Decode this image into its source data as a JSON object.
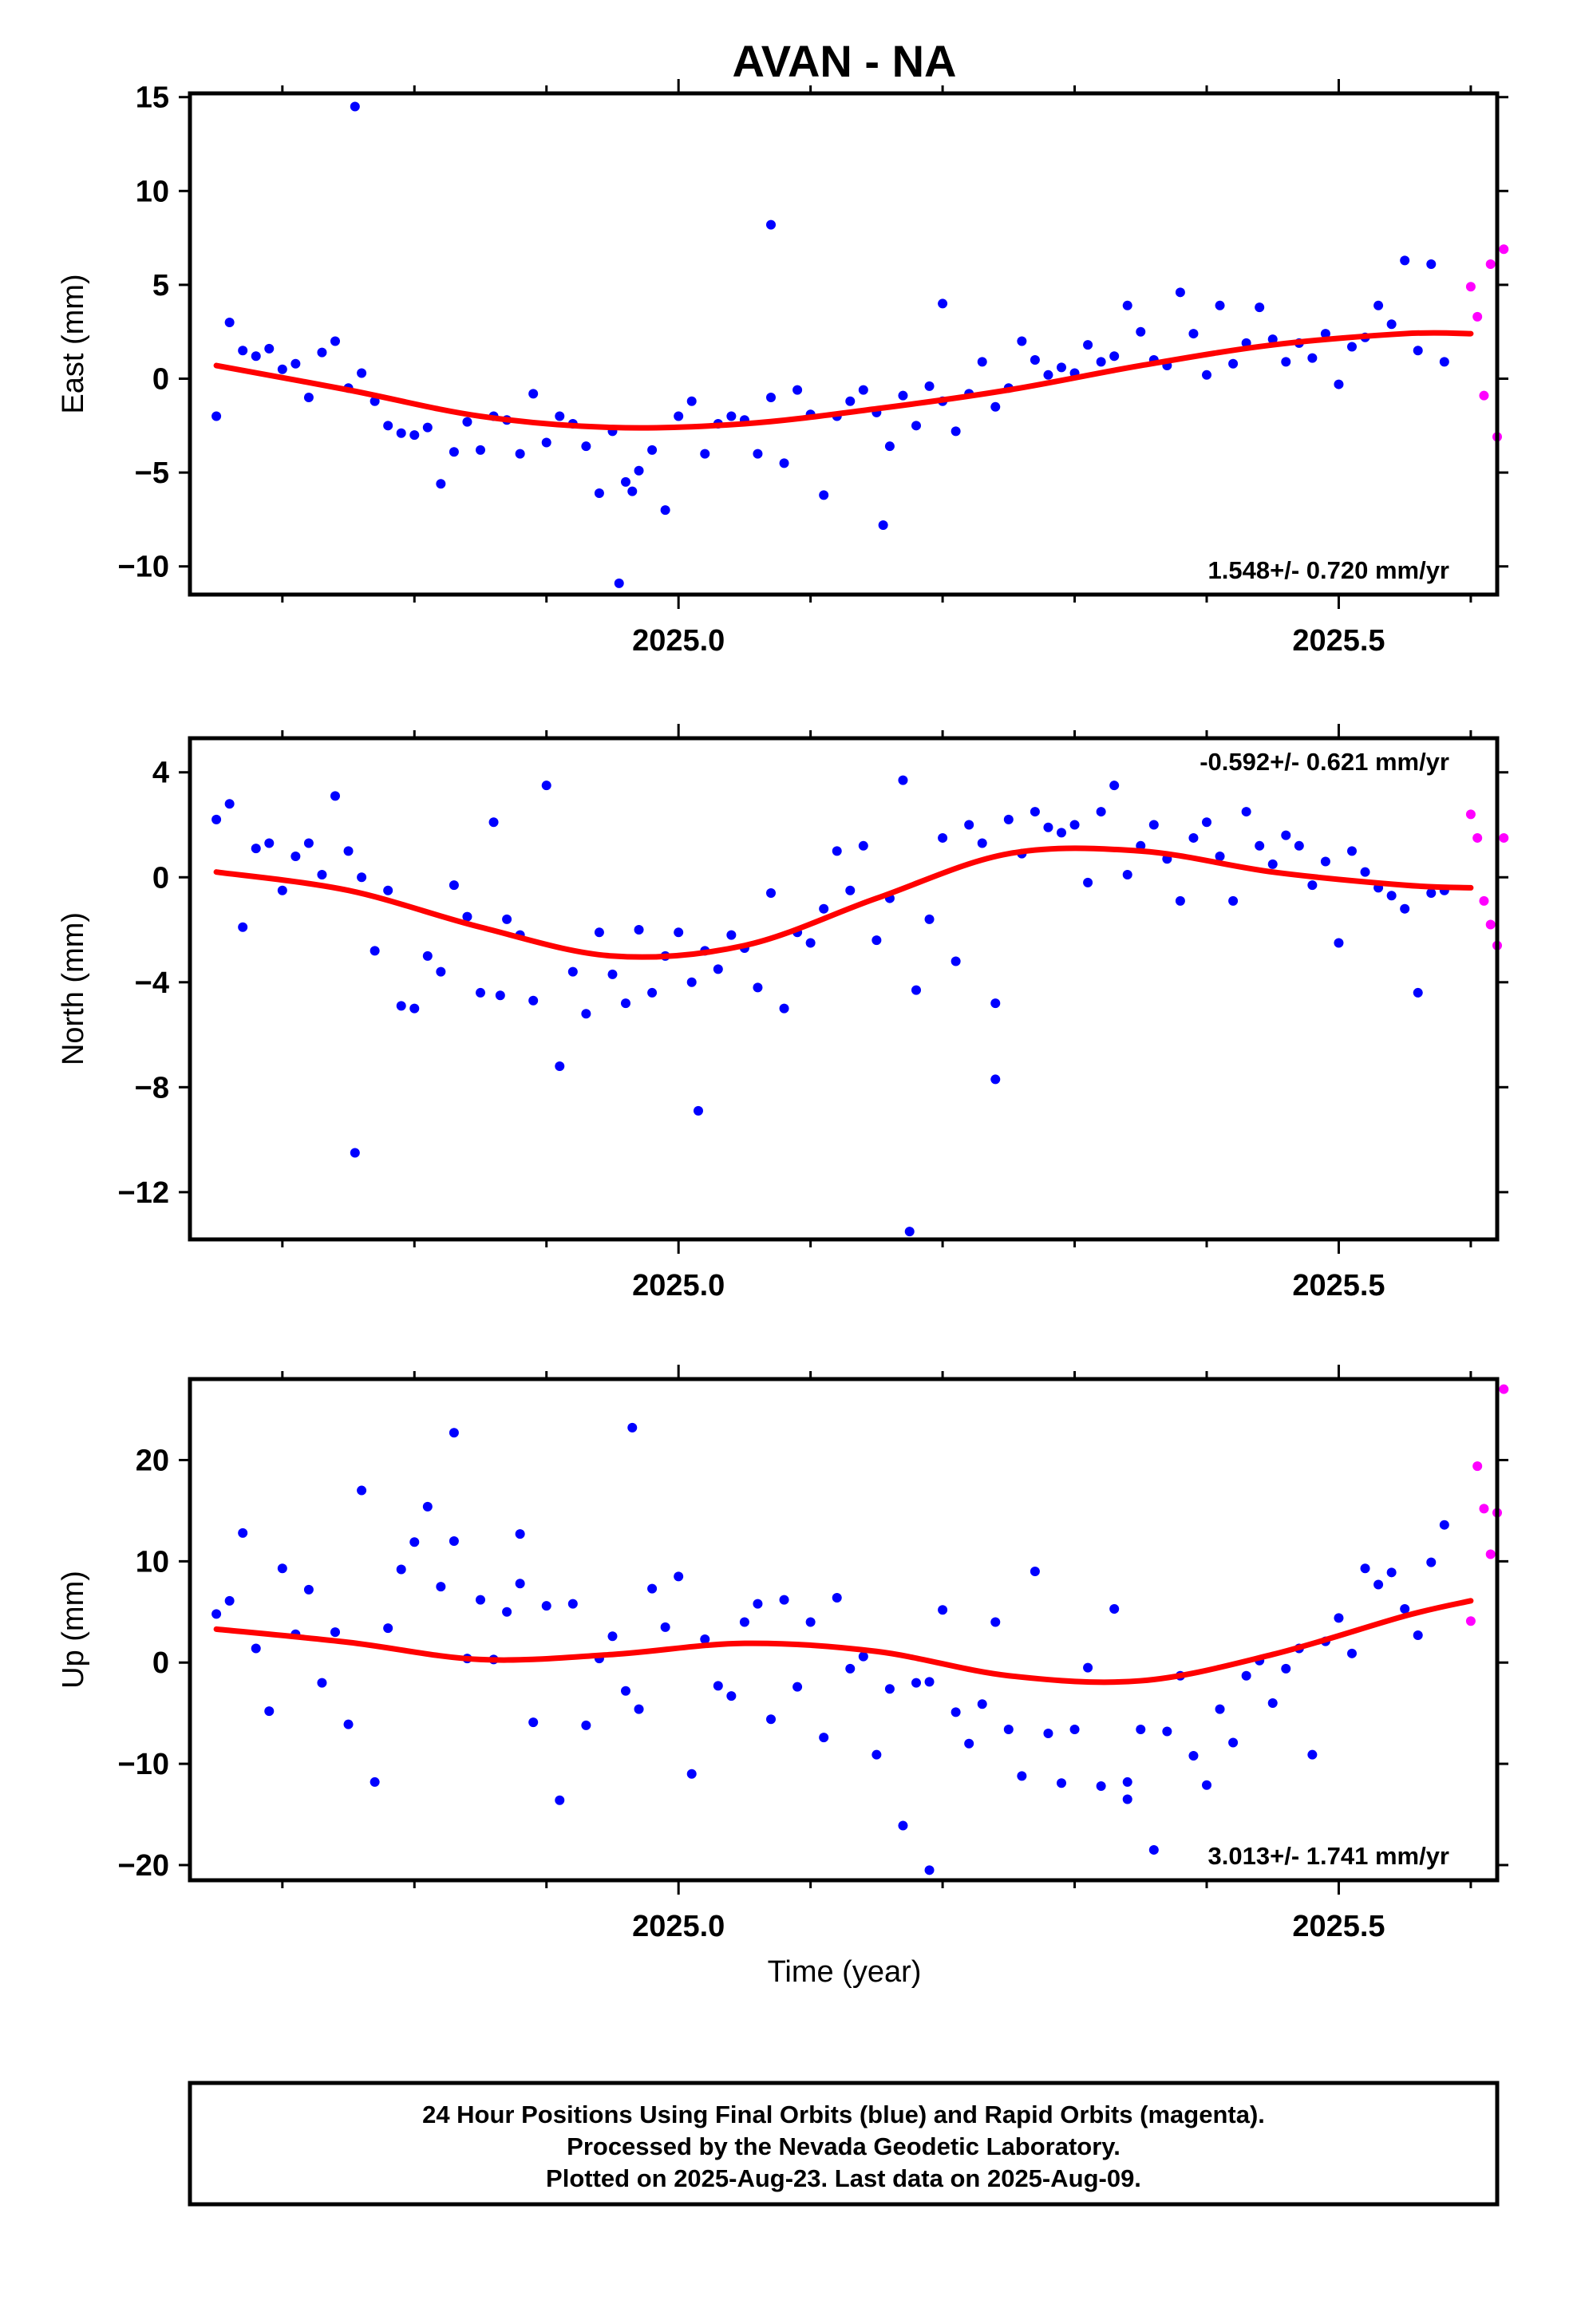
{
  "title": "AVAN - NA",
  "footer": {
    "line1": "24 Hour Positions Using Final Orbits (blue) and Rapid Orbits (magenta).",
    "line2": "Processed by the Nevada Geodetic Laboratory.",
    "line3": "Plotted on 2025-Aug-23. Last data on 2025-Aug-09."
  },
  "colors": {
    "final": "#0000ff",
    "rapid": "#ff00ff",
    "model": "#ff0000"
  },
  "chart_data": [
    {
      "type": "scatter",
      "ylabel": "East (mm)",
      "xlabel": "",
      "xlim": [
        2024.63,
        2025.62
      ],
      "ylim": [
        -11.5,
        15.2
      ],
      "yticks": [
        15,
        10,
        5,
        0,
        -5,
        -10
      ],
      "ytick_labels": [
        "15",
        "10",
        "5",
        "0",
        "−5",
        "−10"
      ],
      "xticks": [
        2025.0,
        2025.5
      ],
      "xtick_labels": [
        "2025.0",
        "2025.5"
      ],
      "rate_label": "1.548+/- 0.720 mm/yr",
      "rate_pos": "bottom-right",
      "model": {
        "x": [
          2024.65,
          2024.75,
          2024.85,
          2024.95,
          2025.05,
          2025.15,
          2025.25,
          2025.35,
          2025.45,
          2025.55,
          2025.6
        ],
        "y": [
          0.7,
          -0.6,
          -2.0,
          -2.6,
          -2.4,
          -1.6,
          -0.6,
          0.7,
          1.8,
          2.4,
          2.4
        ]
      },
      "final": {
        "x": [
          2024.65,
          2024.66,
          2024.67,
          2024.68,
          2024.69,
          2024.7,
          2024.71,
          2024.72,
          2024.73,
          2024.74,
          2024.75,
          2024.76,
          2024.77,
          2024.78,
          2024.79,
          2024.8,
          2024.81,
          2024.82,
          2024.83,
          2024.84,
          2024.85,
          2024.86,
          2024.87,
          2024.88,
          2024.89,
          2024.9,
          2024.91,
          2024.92,
          2024.93,
          2024.94,
          2024.95,
          2024.96,
          2024.97,
          2024.98,
          2024.99,
          2025.0,
          2025.01,
          2025.02,
          2025.03,
          2025.04,
          2025.05,
          2025.06,
          2025.07,
          2025.08,
          2025.09,
          2025.1,
          2025.11,
          2025.12,
          2025.13,
          2025.14,
          2025.15,
          2025.16,
          2025.17,
          2025.18,
          2025.19,
          2025.2,
          2025.21,
          2025.22,
          2025.23,
          2025.24,
          2025.25,
          2025.26,
          2025.27,
          2025.28,
          2025.29,
          2025.3,
          2025.31,
          2025.32,
          2025.33,
          2025.34,
          2025.35,
          2025.36,
          2025.37,
          2025.38,
          2025.39,
          2025.4,
          2025.41,
          2025.42,
          2025.43,
          2025.44,
          2025.45,
          2025.46,
          2025.47,
          2025.48,
          2025.49,
          2025.5,
          2025.51,
          2025.52,
          2025.53,
          2025.54,
          2025.55,
          2025.56,
          2025.57,
          2025.58,
          2024.755,
          2024.955,
          2024.965,
          2025.155,
          2025.07,
          2025.2
        ],
        "y": [
          -2.0,
          3.0,
          1.5,
          1.2,
          1.6,
          0.5,
          0.8,
          -1.0,
          1.4,
          2.0,
          -0.5,
          0.3,
          -1.2,
          -2.5,
          -2.9,
          -3.0,
          -2.6,
          -5.6,
          -3.9,
          -2.3,
          -3.8,
          -2.0,
          -2.2,
          -4.0,
          -0.8,
          -3.4,
          -2.0,
          -2.4,
          -3.6,
          -6.1,
          -2.8,
          -5.5,
          -4.9,
          -3.8,
          -7.0,
          -2.0,
          -1.2,
          -4.0,
          -2.4,
          -2.0,
          -2.2,
          -4.0,
          -1.0,
          -4.5,
          -0.6,
          -1.9,
          -6.2,
          -2.0,
          -1.2,
          -0.6,
          -1.8,
          -3.6,
          -0.9,
          -2.5,
          -0.4,
          -1.2,
          -2.8,
          -0.8,
          0.9,
          -1.5,
          -0.5,
          2.0,
          1.0,
          0.2,
          0.6,
          0.3,
          1.8,
          0.9,
          1.2,
          3.9,
          2.5,
          1.0,
          0.7,
          4.6,
          2.4,
          0.2,
          3.9,
          0.8,
          1.9,
          3.8,
          2.1,
          0.9,
          1.9,
          1.1,
          2.4,
          -0.3,
          1.7,
          2.2,
          3.9,
          2.9,
          6.3,
          1.5,
          6.1,
          0.9,
          14.5,
          -10.9,
          -6.0,
          -7.8,
          8.2,
          4.0
        ],
        "note": "approximate sample of daily final-orbit positions"
      },
      "rapid": {
        "x": [
          2025.6,
          2025.605,
          2025.61,
          2025.615,
          2025.62,
          2025.625
        ],
        "y": [
          4.9,
          3.3,
          -0.9,
          6.1,
          -3.1,
          6.9
        ]
      }
    },
    {
      "type": "scatter",
      "ylabel": "North (mm)",
      "xlabel": "",
      "xlim": [
        2024.63,
        2025.62
      ],
      "ylim": [
        -13.8,
        5.3
      ],
      "yticks": [
        4,
        0,
        -4,
        -8,
        -12
      ],
      "ytick_labels": [
        "4",
        "0",
        "−4",
        "−8",
        "−12"
      ],
      "xticks": [
        2025.0,
        2025.5
      ],
      "xtick_labels": [
        "2025.0",
        "2025.5"
      ],
      "rate_label": "-0.592+/- 0.621 mm/yr",
      "rate_pos": "top-right",
      "model": {
        "x": [
          2024.65,
          2024.75,
          2024.85,
          2024.95,
          2025.05,
          2025.15,
          2025.25,
          2025.35,
          2025.45,
          2025.55,
          2025.6
        ],
        "y": [
          0.2,
          -0.5,
          -1.9,
          -3.0,
          -2.6,
          -0.8,
          0.9,
          1.0,
          0.2,
          -0.3,
          -0.4
        ]
      },
      "final": {
        "x": [
          2024.65,
          2024.66,
          2024.67,
          2024.68,
          2024.69,
          2024.7,
          2024.71,
          2024.72,
          2024.73,
          2024.74,
          2024.75,
          2024.76,
          2024.77,
          2024.78,
          2024.79,
          2024.8,
          2024.81,
          2024.82,
          2024.83,
          2024.84,
          2024.85,
          2024.86,
          2024.87,
          2024.88,
          2024.89,
          2024.9,
          2024.91,
          2024.92,
          2024.93,
          2024.94,
          2024.95,
          2024.96,
          2024.97,
          2024.98,
          2024.99,
          2025.0,
          2025.01,
          2025.02,
          2025.03,
          2025.04,
          2025.05,
          2025.06,
          2025.07,
          2025.08,
          2025.09,
          2025.1,
          2025.11,
          2025.12,
          2025.13,
          2025.14,
          2025.15,
          2025.16,
          2025.17,
          2025.18,
          2025.19,
          2025.2,
          2025.21,
          2025.22,
          2025.23,
          2025.24,
          2025.25,
          2025.26,
          2025.27,
          2025.28,
          2025.29,
          2025.3,
          2025.31,
          2025.32,
          2025.33,
          2025.34,
          2025.35,
          2025.36,
          2025.37,
          2025.38,
          2025.39,
          2025.4,
          2025.41,
          2025.42,
          2025.43,
          2025.44,
          2025.45,
          2025.46,
          2025.47,
          2025.48,
          2025.49,
          2025.5,
          2025.51,
          2025.52,
          2025.53,
          2025.54,
          2025.55,
          2025.56,
          2025.57,
          2025.58,
          2024.755,
          2025.015,
          2025.175,
          2025.24,
          2024.865
        ],
        "y": [
          2.2,
          2.8,
          -1.9,
          1.1,
          1.3,
          -0.5,
          0.8,
          1.3,
          0.1,
          3.1,
          1.0,
          0.0,
          -2.8,
          -0.5,
          -4.9,
          -5.0,
          -3.0,
          -3.6,
          -0.3,
          -1.5,
          -4.4,
          2.1,
          -1.6,
          -2.2,
          -4.7,
          3.5,
          -7.2,
          -3.6,
          -5.2,
          -2.1,
          -3.7,
          -4.8,
          -2.0,
          -4.4,
          -3.0,
          -2.1,
          -4.0,
          -2.8,
          -3.5,
          -2.2,
          -2.7,
          -4.2,
          -0.6,
          -5.0,
          -2.1,
          -2.5,
          -1.2,
          1.0,
          -0.5,
          1.2,
          -2.4,
          -0.8,
          3.7,
          -4.3,
          -1.6,
          1.5,
          -3.2,
          2.0,
          1.3,
          -4.8,
          2.2,
          0.9,
          2.5,
          1.9,
          1.7,
          2.0,
          -0.2,
          2.5,
          3.5,
          0.1,
          1.2,
          2.0,
          0.7,
          -0.9,
          1.5,
          2.1,
          0.8,
          -0.9,
          2.5,
          1.2,
          0.5,
          1.6,
          1.2,
          -0.3,
          0.6,
          -2.5,
          1.0,
          0.2,
          -0.4,
          -0.7,
          -1.2,
          -4.4,
          -0.6,
          -0.5,
          -10.5,
          -8.9,
          -13.5,
          -7.7,
          -4.5
        ],
        "note": "approximate sample of daily final-orbit positions"
      },
      "rapid": {
        "x": [
          2025.6,
          2025.605,
          2025.61,
          2025.615,
          2025.62,
          2025.625
        ],
        "y": [
          2.4,
          1.5,
          -0.9,
          -1.8,
          -2.6,
          1.5
        ]
      }
    },
    {
      "type": "scatter",
      "ylabel": "Up (mm)",
      "xlabel": "Time (year)",
      "xlim": [
        2024.63,
        2025.62
      ],
      "ylim": [
        -21.5,
        28.0
      ],
      "yticks": [
        20,
        10,
        0,
        -10,
        -20
      ],
      "ytick_labels": [
        "20",
        "10",
        "0",
        "−10",
        "−20"
      ],
      "xticks": [
        2025.0,
        2025.5
      ],
      "xtick_labels": [
        "2025.0",
        "2025.5"
      ],
      "rate_label": "3.013+/- 1.741 mm/yr",
      "rate_pos": "bottom-right",
      "model": {
        "x": [
          2024.65,
          2024.75,
          2024.85,
          2024.95,
          2025.05,
          2025.15,
          2025.25,
          2025.35,
          2025.45,
          2025.55,
          2025.6
        ],
        "y": [
          3.3,
          2.0,
          0.3,
          0.8,
          1.9,
          1.1,
          -1.3,
          -1.8,
          0.8,
          4.6,
          6.1
        ]
      },
      "final": {
        "x": [
          2024.65,
          2024.66,
          2024.67,
          2024.68,
          2024.69,
          2024.7,
          2024.71,
          2024.72,
          2024.73,
          2024.74,
          2024.75,
          2024.76,
          2024.77,
          2024.78,
          2024.79,
          2024.8,
          2024.81,
          2024.82,
          2024.83,
          2024.84,
          2024.85,
          2024.86,
          2024.87,
          2024.88,
          2024.89,
          2024.9,
          2024.91,
          2024.92,
          2024.93,
          2024.94,
          2024.95,
          2024.96,
          2024.97,
          2024.98,
          2024.99,
          2025.0,
          2025.01,
          2025.02,
          2025.03,
          2025.04,
          2025.05,
          2025.06,
          2025.07,
          2025.08,
          2025.09,
          2025.1,
          2025.11,
          2025.12,
          2025.13,
          2025.14,
          2025.15,
          2025.16,
          2025.17,
          2025.18,
          2025.19,
          2025.2,
          2025.21,
          2025.22,
          2025.23,
          2025.24,
          2025.25,
          2025.26,
          2025.27,
          2025.28,
          2025.29,
          2025.3,
          2025.31,
          2025.32,
          2025.33,
          2025.34,
          2025.35,
          2025.36,
          2025.37,
          2025.38,
          2025.39,
          2025.4,
          2025.41,
          2025.42,
          2025.43,
          2025.44,
          2025.45,
          2025.46,
          2025.47,
          2025.48,
          2025.49,
          2025.5,
          2025.51,
          2025.52,
          2025.53,
          2025.54,
          2025.55,
          2025.56,
          2025.57,
          2025.58,
          2024.83,
          2024.965,
          2025.19,
          2025.34,
          2024.88
        ],
        "y": [
          4.8,
          6.1,
          12.8,
          1.4,
          -4.8,
          9.3,
          2.8,
          7.2,
          -2.0,
          3.0,
          -6.1,
          17.0,
          -11.8,
          3.4,
          9.2,
          11.9,
          15.4,
          7.5,
          12.0,
          0.4,
          6.2,
          0.3,
          5.0,
          7.8,
          -5.9,
          5.6,
          -13.6,
          5.8,
          -6.2,
          0.4,
          2.6,
          -2.8,
          -4.6,
          7.3,
          3.5,
          8.5,
          -11.0,
          2.3,
          -2.3,
          -3.3,
          4.0,
          5.8,
          -5.6,
          6.2,
          -2.4,
          4.0,
          -7.4,
          6.4,
          -0.6,
          0.6,
          -9.1,
          -2.6,
          -16.1,
          -2.0,
          -1.9,
          5.2,
          -4.9,
          -8.0,
          -4.1,
          4.0,
          -6.6,
          -11.2,
          9.0,
          -7.0,
          -11.9,
          -6.6,
          -0.5,
          -12.2,
          5.3,
          -11.8,
          -6.6,
          -18.5,
          -6.8,
          -1.3,
          -9.2,
          -12.1,
          -4.6,
          -7.9,
          -1.3,
          0.2,
          -4.0,
          -0.6,
          1.4,
          -9.1,
          2.1,
          4.4,
          0.9,
          9.3,
          7.7,
          8.9,
          5.3,
          2.7,
          9.9,
          13.6,
          22.7,
          23.2,
          -20.5,
          -13.5,
          12.7
        ],
        "note": "approximate sample of daily final-orbit positions"
      },
      "rapid": {
        "x": [
          2025.6,
          2025.605,
          2025.61,
          2025.615,
          2025.62,
          2025.625
        ],
        "y": [
          4.1,
          19.4,
          15.2,
          10.7,
          14.8,
          27.0
        ]
      }
    }
  ]
}
